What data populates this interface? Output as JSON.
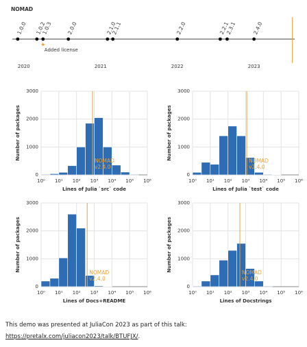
{
  "chart_data": [
    {
      "type": "timeline",
      "title": "NOMAD",
      "x": [
        2019.92,
        2020.17,
        2020.25,
        2020.58,
        2021.09,
        2021.16,
        2022.0,
        2022.56,
        2022.65,
        2023.0
      ],
      "labels": [
        "1.0.0",
        "1.0.2",
        "1.0.3",
        "2.0.0",
        "2.1.0",
        "2.1.1",
        "2.2.0",
        "2.2.1",
        "2.3.1",
        "2.4.0"
      ],
      "xlim": [
        2019.85,
        2023.53
      ],
      "xticks": [
        2020,
        2021,
        2022,
        2023
      ],
      "annotation": {
        "text": "Added license",
        "x": 2020.25
      },
      "vline": {
        "x": 2023.5
      },
      "color": "#000000",
      "accent": "#e8a33a"
    },
    {
      "type": "histogram",
      "xlabel": "Lines of Julia `src` code",
      "ylabel": "Number of packages",
      "bins": [
        1,
        3.16,
        10,
        31.6,
        100,
        316,
        1000,
        3160,
        10000,
        31600,
        100000,
        316000
      ],
      "values": [
        20,
        40,
        90,
        330,
        1000,
        1850,
        2050,
        1000,
        350,
        100,
        20
      ],
      "xlim": [
        1,
        1000000
      ],
      "log_x": true,
      "xticks": [
        {
          "value": 1,
          "label": "10⁰"
        },
        {
          "value": 10,
          "label": "10¹"
        },
        {
          "value": 100,
          "label": "10²"
        },
        {
          "value": 1000,
          "label": "10³"
        },
        {
          "value": 10000,
          "label": "10⁴"
        },
        {
          "value": 100000,
          "label": "10⁵"
        },
        {
          "value": 1000000,
          "label": "10⁶"
        }
      ],
      "ylim": [
        0,
        3000
      ],
      "yticks": [
        0,
        1000,
        2000,
        3000
      ],
      "grid": true,
      "color": "#2e6cb4",
      "vline": {
        "x": 800,
        "label": [
          "NOMAD",
          "v2.4.0"
        ],
        "color": "#e8a33a"
      }
    },
    {
      "type": "histogram",
      "xlabel": "Lines of Julia `test` code",
      "ylabel": "Number of packages",
      "bins": [
        1,
        3.16,
        10,
        31.6,
        100,
        316,
        1000,
        3160,
        10000,
        31600,
        100000,
        316000
      ],
      "values": [
        90,
        450,
        380,
        1400,
        1750,
        1400,
        620,
        90,
        20,
        5,
        0
      ],
      "xlim": [
        1,
        1000000
      ],
      "log_x": true,
      "xticks": [
        {
          "value": 1,
          "label": "10⁰"
        },
        {
          "value": 10,
          "label": "10¹"
        },
        {
          "value": 100,
          "label": "10²"
        },
        {
          "value": 1000,
          "label": "10³"
        },
        {
          "value": 10000,
          "label": "10⁴"
        },
        {
          "value": 100000,
          "label": "10⁵"
        },
        {
          "value": 1000000,
          "label": "10⁶"
        }
      ],
      "ylim": [
        0,
        3000
      ],
      "yticks": [
        0,
        1000,
        2000,
        3000
      ],
      "grid": true,
      "color": "#2e6cb4",
      "vline": {
        "x": 1150,
        "label": [
          "NOMAD",
          "v2.4.0"
        ],
        "color": "#e8a33a"
      }
    },
    {
      "type": "histogram",
      "xlabel": "Lines of Docs+README",
      "ylabel": "Number of packages",
      "bins": [
        1,
        3.16,
        10,
        31.6,
        100,
        316,
        1000,
        3160,
        10000,
        31600,
        100000,
        316000
      ],
      "values": [
        200,
        300,
        1030,
        2600,
        2100,
        400,
        30,
        5,
        0,
        0,
        0
      ],
      "xlim": [
        1,
        1000000
      ],
      "log_x": true,
      "xticks": [
        {
          "value": 1,
          "label": "10⁰"
        },
        {
          "value": 10,
          "label": "10¹"
        },
        {
          "value": 100,
          "label": "10²"
        },
        {
          "value": 1000,
          "label": "10³"
        },
        {
          "value": 10000,
          "label": "10⁴"
        },
        {
          "value": 100000,
          "label": "10⁵"
        },
        {
          "value": 1000000,
          "label": "10⁶"
        }
      ],
      "ylim": [
        0,
        3000
      ],
      "yticks": [
        0,
        1000,
        2000,
        3000
      ],
      "grid": true,
      "color": "#2e6cb4",
      "vline": {
        "x": 400,
        "label": [
          "NOMAD",
          "v2.4.0"
        ],
        "color": "#e8a33a"
      }
    },
    {
      "type": "histogram",
      "xlabel": "Lines of Docstrings",
      "ylabel": "Number of packages",
      "bins": [
        1,
        3.16,
        10,
        31.6,
        100,
        316,
        1000,
        3160,
        10000,
        31600,
        100000,
        316000
      ],
      "values": [
        20,
        200,
        420,
        950,
        1300,
        1550,
        650,
        200,
        20,
        0,
        0
      ],
      "xlim": [
        1,
        1000000
      ],
      "log_x": true,
      "xticks": [
        {
          "value": 1,
          "label": "10⁰"
        },
        {
          "value": 10,
          "label": "10¹"
        },
        {
          "value": 100,
          "label": "10²"
        },
        {
          "value": 1000,
          "label": "10³"
        },
        {
          "value": 10000,
          "label": "10⁴"
        },
        {
          "value": 100000,
          "label": "10⁵"
        },
        {
          "value": 1000000,
          "label": "10⁶"
        }
      ],
      "ylim": [
        0,
        3000
      ],
      "yticks": [
        0,
        1000,
        2000,
        3000
      ],
      "grid": true,
      "color": "#2e6cb4",
      "vline": {
        "x": 470,
        "label": [
          "NOMAD",
          "v2.4.0"
        ],
        "color": "#e8a33a"
      }
    }
  ],
  "footer": {
    "text": "This demo was presented at JuliaCon 2023 as part of this talk:",
    "link": "https://pretalx.com/juliacon2023/talk/BTUFJX/",
    "after": "."
  }
}
